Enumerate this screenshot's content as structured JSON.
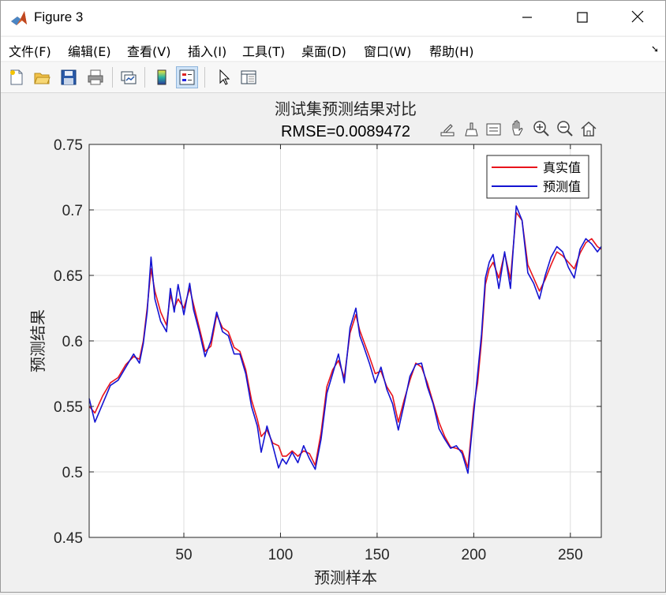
{
  "window": {
    "title": "Figure 3",
    "minimize_icon": "minimize-icon",
    "maximize_icon": "maximize-icon",
    "close_icon": "close-icon"
  },
  "menu": {
    "items": [
      "文件(F)",
      "编辑(E)",
      "查看(V)",
      "插入(I)",
      "工具(T)",
      "桌面(D)",
      "窗口(W)",
      "帮助(H)"
    ],
    "underline_chars": [
      "F",
      "E",
      "V",
      "I",
      "T",
      "D",
      "W",
      "H"
    ]
  },
  "toolbar": {
    "icons": [
      "new-figure-icon",
      "open-file-icon",
      "save-icon",
      "print-icon",
      "link-plot-icon",
      "colorbar-icon",
      "legend-icon",
      "edit-plot-icon",
      "property-inspector-icon"
    ]
  },
  "axes_toolbar": {
    "icons": [
      "export-icon",
      "brush-icon",
      "data-tips-icon",
      "pan-icon",
      "zoom-in-icon",
      "zoom-out-icon",
      "home-icon"
    ]
  },
  "colors": {
    "true_series": "#e8141c",
    "pred_series": "#1414d2",
    "grid": "#dcdcdc",
    "axes_bg": "#ffffff"
  },
  "chart_data": {
    "type": "line",
    "title": "测试集预测结果对比",
    "subtitle": "RMSE=0.0089472",
    "xlabel": "预测样本",
    "ylabel": "预测结果",
    "xlim": [
      1,
      266
    ],
    "ylim": [
      0.45,
      0.75
    ],
    "xticks": [
      50,
      100,
      150,
      200,
      250
    ],
    "xtick_labels": [
      "50",
      "100",
      "150",
      "200",
      "250"
    ],
    "yticks": [
      0.45,
      0.5,
      0.55,
      0.6,
      0.65,
      0.7,
      0.75
    ],
    "ytick_labels": [
      "0.45",
      "0.5",
      "0.55",
      "0.6",
      "0.65",
      "0.7",
      "0.75"
    ],
    "grid": true,
    "legend_location": "top-right",
    "series": [
      {
        "name": "真实值",
        "color": "#e8141c",
        "x": [
          1,
          4,
          8,
          12,
          16,
          20,
          24,
          27,
          29,
          31,
          33,
          35,
          38,
          41,
          43,
          45,
          47,
          50,
          53,
          55,
          58,
          61,
          64,
          67,
          70,
          73,
          76,
          79,
          82,
          85,
          88,
          90,
          93,
          96,
          99,
          101,
          103,
          106,
          109,
          112,
          115,
          118,
          121,
          124,
          127,
          130,
          133,
          136,
          139,
          141,
          143,
          146,
          149,
          152,
          155,
          158,
          161,
          164,
          167,
          170,
          173,
          176,
          179,
          182,
          185,
          188,
          191,
          194,
          197,
          200,
          202,
          204,
          206,
          208,
          210,
          213,
          216,
          219,
          222,
          225,
          228,
          231,
          234,
          237,
          240,
          243,
          246,
          249,
          252,
          255,
          258,
          261,
          264,
          266
        ],
        "values": [
          0.55,
          0.545,
          0.558,
          0.568,
          0.572,
          0.582,
          0.588,
          0.586,
          0.6,
          0.625,
          0.655,
          0.638,
          0.622,
          0.612,
          0.635,
          0.625,
          0.632,
          0.625,
          0.64,
          0.628,
          0.61,
          0.592,
          0.596,
          0.62,
          0.61,
          0.607,
          0.595,
          0.592,
          0.578,
          0.555,
          0.54,
          0.527,
          0.532,
          0.522,
          0.52,
          0.512,
          0.512,
          0.516,
          0.512,
          0.516,
          0.514,
          0.505,
          0.53,
          0.565,
          0.578,
          0.585,
          0.572,
          0.606,
          0.62,
          0.608,
          0.6,
          0.588,
          0.575,
          0.577,
          0.565,
          0.558,
          0.538,
          0.555,
          0.57,
          0.583,
          0.58,
          0.568,
          0.553,
          0.538,
          0.527,
          0.519,
          0.518,
          0.516,
          0.503,
          0.55,
          0.568,
          0.6,
          0.643,
          0.655,
          0.66,
          0.648,
          0.667,
          0.647,
          0.698,
          0.692,
          0.658,
          0.648,
          0.638,
          0.647,
          0.658,
          0.668,
          0.665,
          0.66,
          0.655,
          0.667,
          0.675,
          0.678,
          0.672,
          0.67
        ]
      },
      {
        "name": "预测值",
        "color": "#1414d2",
        "x": [
          1,
          4,
          8,
          12,
          16,
          20,
          24,
          27,
          29,
          31,
          33,
          35,
          38,
          41,
          43,
          45,
          47,
          50,
          53,
          55,
          58,
          61,
          64,
          67,
          70,
          73,
          76,
          79,
          82,
          85,
          88,
          90,
          93,
          96,
          99,
          101,
          103,
          106,
          109,
          112,
          115,
          118,
          121,
          124,
          127,
          130,
          133,
          136,
          139,
          141,
          143,
          146,
          149,
          152,
          155,
          158,
          161,
          164,
          167,
          170,
          173,
          176,
          179,
          182,
          185,
          188,
          191,
          194,
          197,
          200,
          202,
          204,
          206,
          208,
          210,
          213,
          216,
          219,
          222,
          225,
          228,
          231,
          234,
          237,
          240,
          243,
          246,
          249,
          252,
          255,
          258,
          261,
          264,
          266
        ],
        "values": [
          0.556,
          0.538,
          0.552,
          0.566,
          0.57,
          0.58,
          0.59,
          0.583,
          0.598,
          0.622,
          0.664,
          0.632,
          0.615,
          0.607,
          0.64,
          0.622,
          0.643,
          0.62,
          0.644,
          0.624,
          0.607,
          0.588,
          0.6,
          0.622,
          0.607,
          0.604,
          0.59,
          0.59,
          0.575,
          0.55,
          0.535,
          0.515,
          0.535,
          0.52,
          0.503,
          0.51,
          0.506,
          0.515,
          0.507,
          0.52,
          0.51,
          0.502,
          0.525,
          0.56,
          0.575,
          0.59,
          0.568,
          0.61,
          0.625,
          0.604,
          0.596,
          0.583,
          0.568,
          0.58,
          0.563,
          0.552,
          0.532,
          0.552,
          0.573,
          0.582,
          0.583,
          0.565,
          0.552,
          0.533,
          0.525,
          0.518,
          0.52,
          0.514,
          0.499,
          0.545,
          0.575,
          0.605,
          0.648,
          0.66,
          0.666,
          0.64,
          0.668,
          0.64,
          0.703,
          0.692,
          0.652,
          0.644,
          0.632,
          0.65,
          0.664,
          0.672,
          0.668,
          0.656,
          0.648,
          0.67,
          0.678,
          0.674,
          0.668,
          0.672
        ]
      }
    ]
  }
}
